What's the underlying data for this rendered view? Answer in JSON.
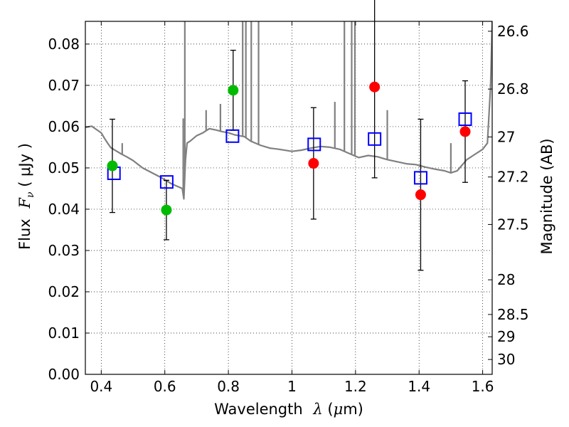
{
  "chart_data": {
    "type": "scatter",
    "xlabel": {
      "prefix": "Wavelength",
      "symbol": "λ",
      "unit_open": " (",
      "unit_mu": "μ",
      "unit_rest": "m)"
    },
    "ylabel": {
      "prefix": "Flux",
      "symbol": "F",
      "subscript": "ν",
      "unit": " ( μJy )"
    },
    "y2label": "Magnitude (AB)",
    "xlim": [
      0.35,
      1.63
    ],
    "ylim": [
      0.0,
      0.0855
    ],
    "xticks": [
      0.4,
      0.6,
      0.8,
      1.0,
      1.2,
      1.4,
      1.6
    ],
    "xtick_labels": [
      "0.4",
      "0.6",
      "0.8",
      "1",
      "1.2",
      "1.4",
      "1.6"
    ],
    "yticks": [
      0.0,
      0.01,
      0.02,
      0.03,
      0.04,
      0.05,
      0.06,
      0.07,
      0.08
    ],
    "ytick_labels": [
      "0.00",
      "0.01",
      "0.02",
      "0.03",
      "0.04",
      "0.05",
      "0.06",
      "0.07",
      "0.08"
    ],
    "y2ticks": [
      {
        "label": "26.6",
        "flux": 0.0831
      },
      {
        "label": "26.8",
        "flux": 0.0691
      },
      {
        "label": "27",
        "flux": 0.0575
      },
      {
        "label": "27.2",
        "flux": 0.0478
      },
      {
        "label": "27.5",
        "flux": 0.0363
      },
      {
        "label": "28",
        "flux": 0.0229
      },
      {
        "label": "28.5",
        "flux": 0.0145
      },
      {
        "label": "29",
        "flux": 0.0091
      },
      {
        "label": "30",
        "flux": 0.0036
      }
    ],
    "grid": true,
    "colors": {
      "template": "#808080",
      "model": "#0000ff",
      "detect_green": "#00bb00",
      "detect_red": "#ff0000",
      "errorbar": "#000000"
    },
    "template_spectrum": [
      [
        0.35,
        0.0598
      ],
      [
        0.37,
        0.0601
      ],
      [
        0.385,
        0.0593
      ],
      [
        0.4,
        0.0585
      ],
      [
        0.41,
        0.0572
      ],
      [
        0.42,
        0.056
      ],
      [
        0.43,
        0.0549
      ],
      [
        0.445,
        0.0542
      ],
      [
        0.46,
        0.0535
      ],
      [
        0.48,
        0.0527
      ],
      [
        0.5,
        0.0518
      ],
      [
        0.53,
        0.05
      ],
      [
        0.56,
        0.0488
      ],
      [
        0.59,
        0.0476
      ],
      [
        0.62,
        0.0462
      ],
      [
        0.64,
        0.0455
      ],
      [
        0.655,
        0.045
      ],
      [
        0.66,
        0.0425
      ],
      [
        0.665,
        0.052
      ],
      [
        0.67,
        0.056
      ],
      [
        0.68,
        0.0565
      ],
      [
        0.7,
        0.0578
      ],
      [
        0.72,
        0.0585
      ],
      [
        0.74,
        0.0595
      ],
      [
        0.76,
        0.0592
      ],
      [
        0.78,
        0.0588
      ],
      [
        0.8,
        0.0585
      ],
      [
        0.82,
        0.058
      ],
      [
        0.85,
        0.0576
      ],
      [
        0.87,
        0.0565
      ],
      [
        0.9,
        0.0555
      ],
      [
        0.93,
        0.0548
      ],
      [
        0.96,
        0.0545
      ],
      [
        1.0,
        0.054
      ],
      [
        1.03,
        0.0543
      ],
      [
        1.06,
        0.0548
      ],
      [
        1.09,
        0.0552
      ],
      [
        1.12,
        0.055
      ],
      [
        1.15,
        0.0545
      ],
      [
        1.18,
        0.0535
      ],
      [
        1.21,
        0.0525
      ],
      [
        1.24,
        0.053
      ],
      [
        1.27,
        0.0527
      ],
      [
        1.3,
        0.052
      ],
      [
        1.33,
        0.0515
      ],
      [
        1.36,
        0.051
      ],
      [
        1.39,
        0.0508
      ],
      [
        1.42,
        0.0502
      ],
      [
        1.45,
        0.0497
      ],
      [
        1.48,
        0.0493
      ],
      [
        1.5,
        0.0488
      ],
      [
        1.52,
        0.0493
      ],
      [
        1.55,
        0.052
      ],
      [
        1.57,
        0.053
      ],
      [
        1.6,
        0.0545
      ],
      [
        1.615,
        0.056
      ],
      [
        1.625,
        0.07
      ],
      [
        1.63,
        0.0855
      ]
    ],
    "template_spikes": [
      [
        0.466,
        0.056
      ],
      [
        0.658,
        0.062
      ],
      [
        0.663,
        0.0855
      ],
      [
        0.73,
        0.064
      ],
      [
        0.775,
        0.0655
      ],
      [
        0.845,
        0.0855
      ],
      [
        0.855,
        0.0855
      ],
      [
        0.872,
        0.0855
      ],
      [
        0.895,
        0.0855
      ],
      [
        1.135,
        0.066
      ],
      [
        1.165,
        0.0855
      ],
      [
        1.188,
        0.0855
      ],
      [
        1.198,
        0.0855
      ],
      [
        1.3,
        0.064
      ],
      [
        1.5,
        0.056
      ]
    ],
    "model_points": [
      {
        "x": 0.44,
        "y": 0.0487
      },
      {
        "x": 0.606,
        "y": 0.0466
      },
      {
        "x": 0.813,
        "y": 0.0577
      },
      {
        "x": 1.07,
        "y": 0.0557
      },
      {
        "x": 1.26,
        "y": 0.057
      },
      {
        "x": 1.405,
        "y": 0.0476
      },
      {
        "x": 1.545,
        "y": 0.0618
      }
    ],
    "observed_points": [
      {
        "x": 0.435,
        "y": 0.0505,
        "err": 0.0113,
        "color": "green"
      },
      {
        "x": 0.605,
        "y": 0.0398,
        "err": 0.0072,
        "color": "green"
      },
      {
        "x": 0.815,
        "y": 0.0688,
        "err": 0.0097,
        "color": "green"
      },
      {
        "x": 1.068,
        "y": 0.0511,
        "err": 0.0135,
        "color": "red"
      },
      {
        "x": 1.26,
        "y": 0.0696,
        "err": 0.022,
        "color": "red"
      },
      {
        "x": 1.405,
        "y": 0.0435,
        "err": 0.0183,
        "color": "red"
      },
      {
        "x": 1.545,
        "y": 0.0588,
        "err": 0.0123,
        "color": "red"
      }
    ]
  }
}
